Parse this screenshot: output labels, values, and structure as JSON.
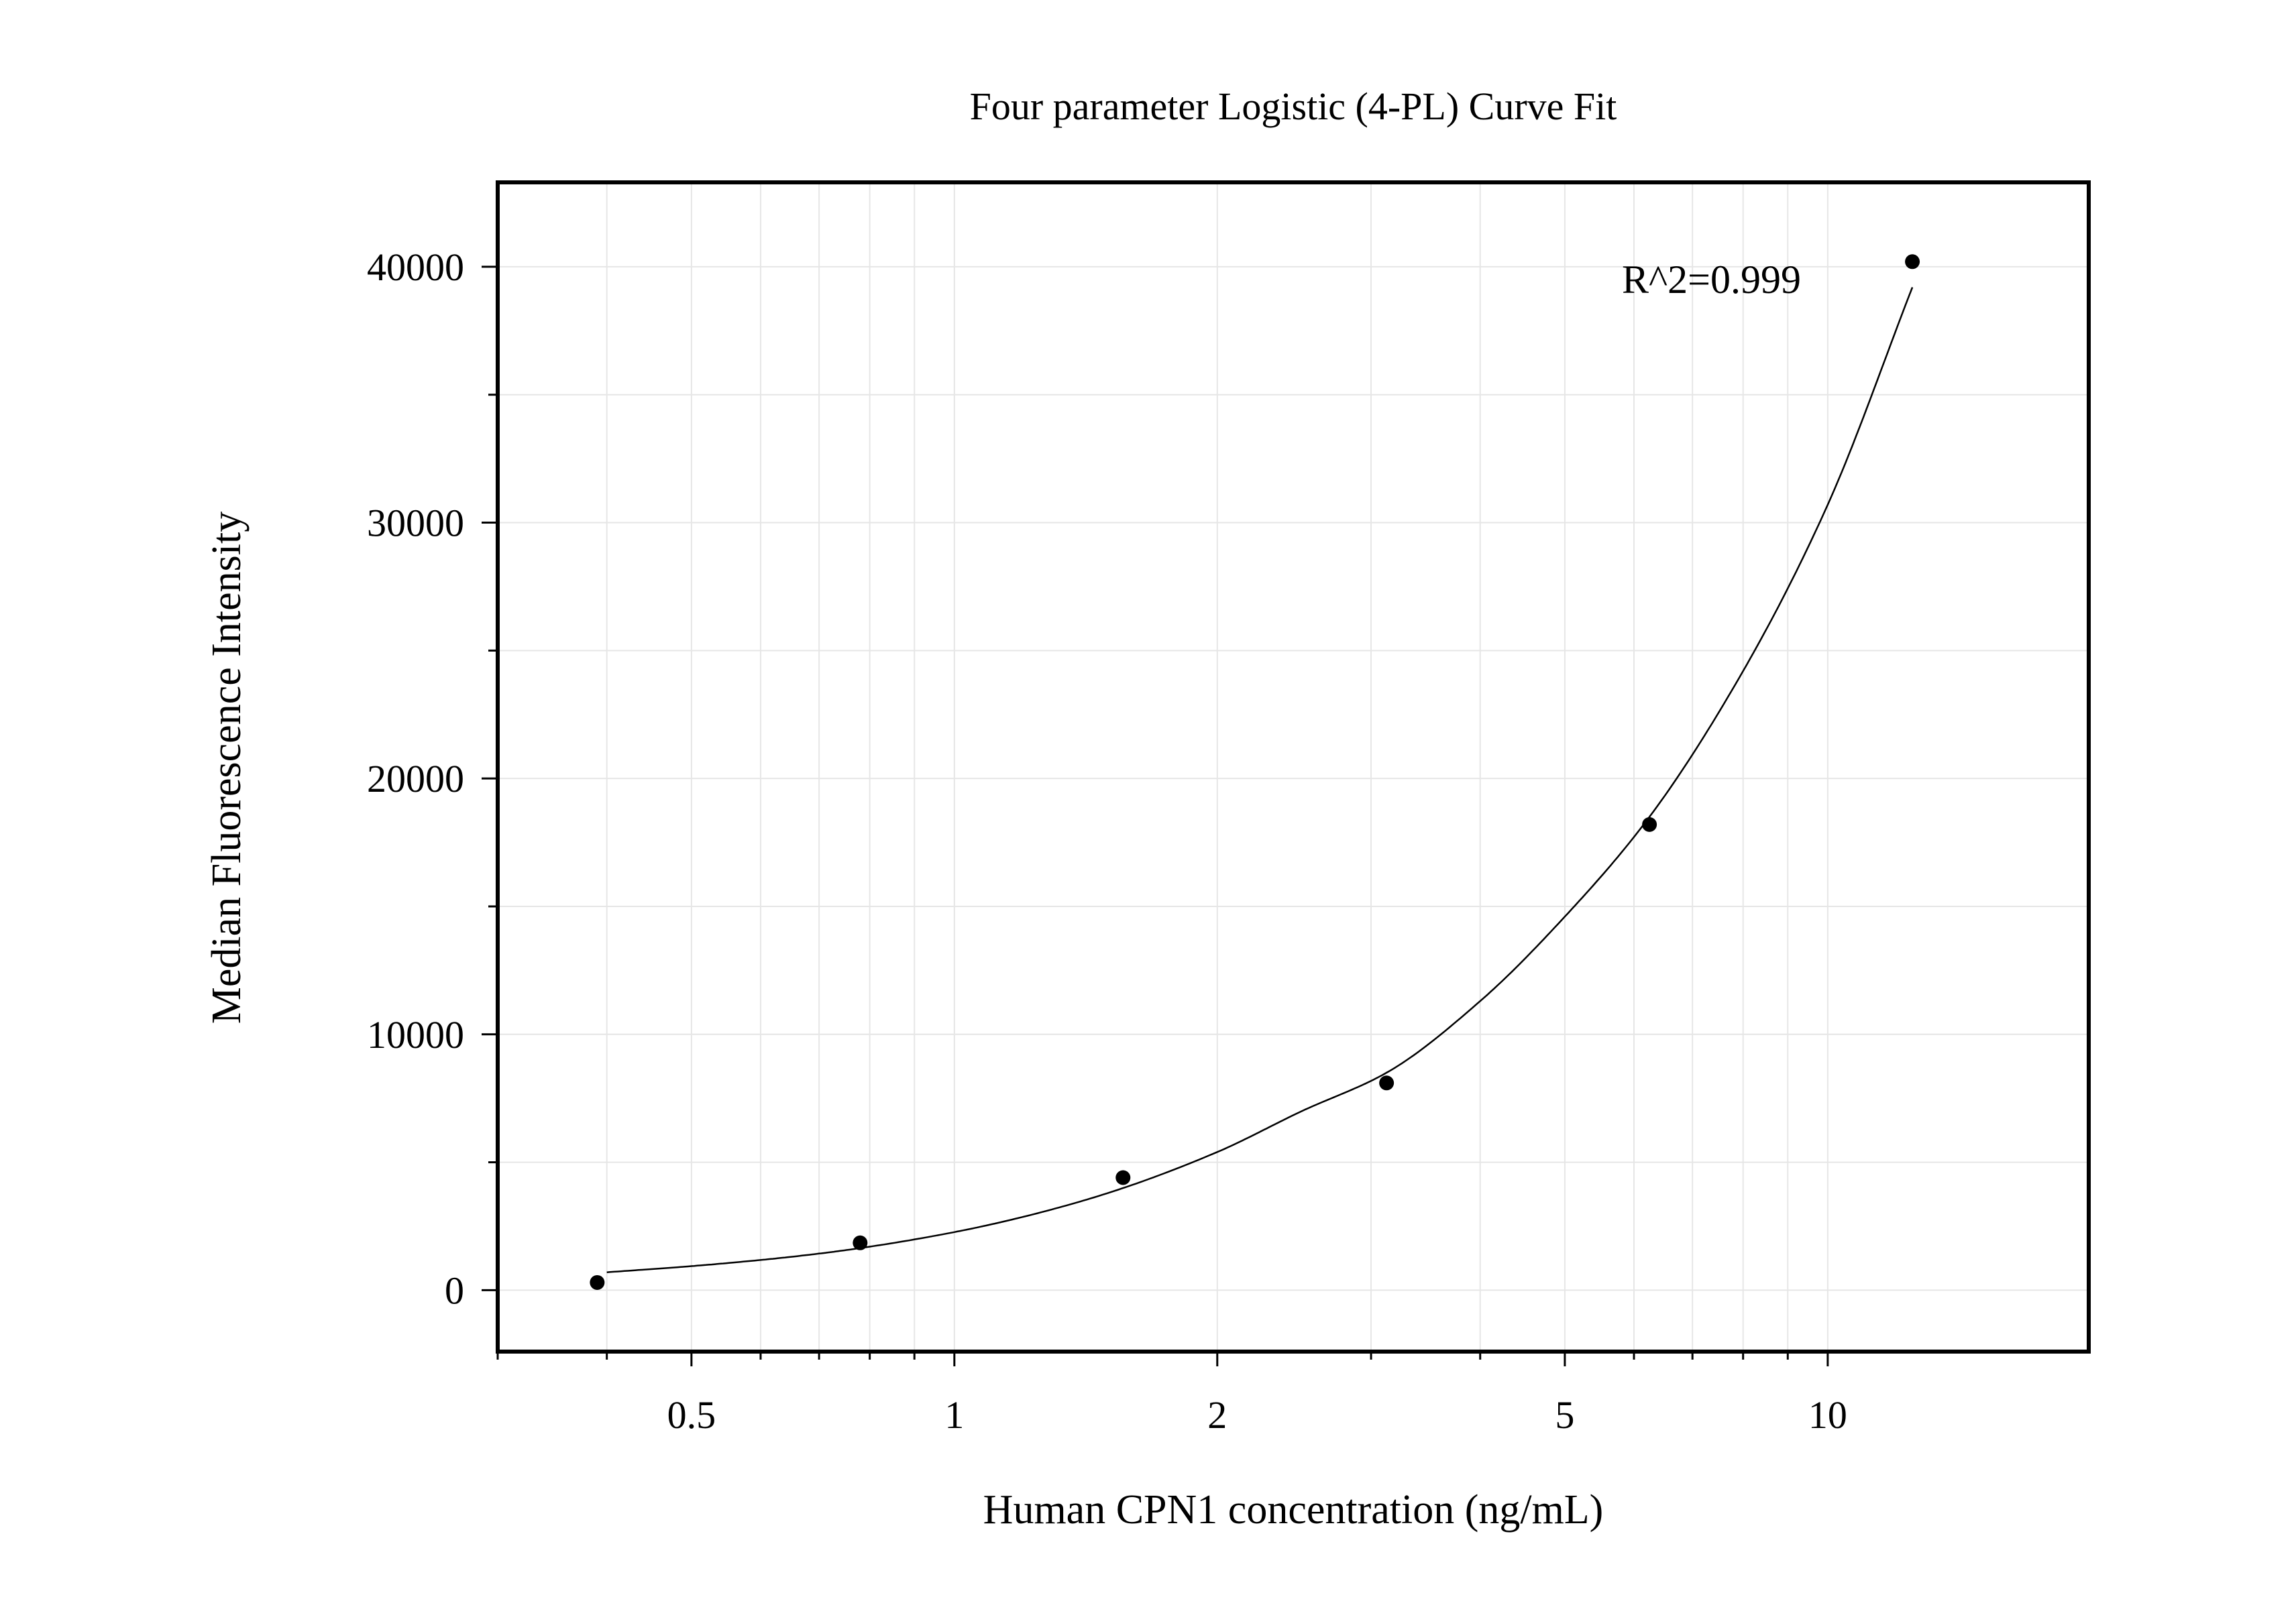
{
  "chart_data": {
    "type": "scatter",
    "title": "Four parameter Logistic (4-PL) Curve Fit",
    "xlabel": "Human CPN1 concentration (ng/mL)",
    "ylabel": "Median Fluorescence Intensity",
    "xscale": "log",
    "xlim": [
      0.3,
      19.9
    ],
    "ylim": [
      -2400,
      43300
    ],
    "x_ticks": [
      0.5,
      1,
      2,
      5,
      10
    ],
    "x_tick_labels": [
      "0.5",
      "1",
      "2",
      "5",
      "10"
    ],
    "y_ticks": [
      0,
      10000,
      20000,
      30000,
      40000
    ],
    "y_tick_labels": [
      "0",
      "10000",
      "20000",
      "30000",
      "40000"
    ],
    "grid": true,
    "annotation": "R^2=0.999",
    "annotation_position": "top-right",
    "colors": {
      "points": "#000000",
      "curve": "#000000",
      "grid": "#e6e6e6",
      "frame": "#000000"
    },
    "series": [
      {
        "kind": "points",
        "x": [
          0.39,
          0.78,
          1.56,
          3.125,
          6.25,
          12.5
        ],
        "y": [
          300,
          1850,
          4400,
          8100,
          18200,
          40200
        ]
      },
      {
        "kind": "fit-curve",
        "x": [
          0.4,
          0.5,
          0.6,
          0.7,
          0.8,
          1.0,
          1.2,
          1.5,
          2.0,
          2.5,
          3.125,
          4.0,
          5.0,
          6.25,
          8.0,
          10.0,
          12.5
        ],
        "y": [
          700,
          940,
          1180,
          1430,
          1700,
          2270,
          2870,
          3800,
          5400,
          7000,
          8500,
          11300,
          14600,
          18500,
          24200,
          30700,
          39200
        ]
      }
    ]
  }
}
